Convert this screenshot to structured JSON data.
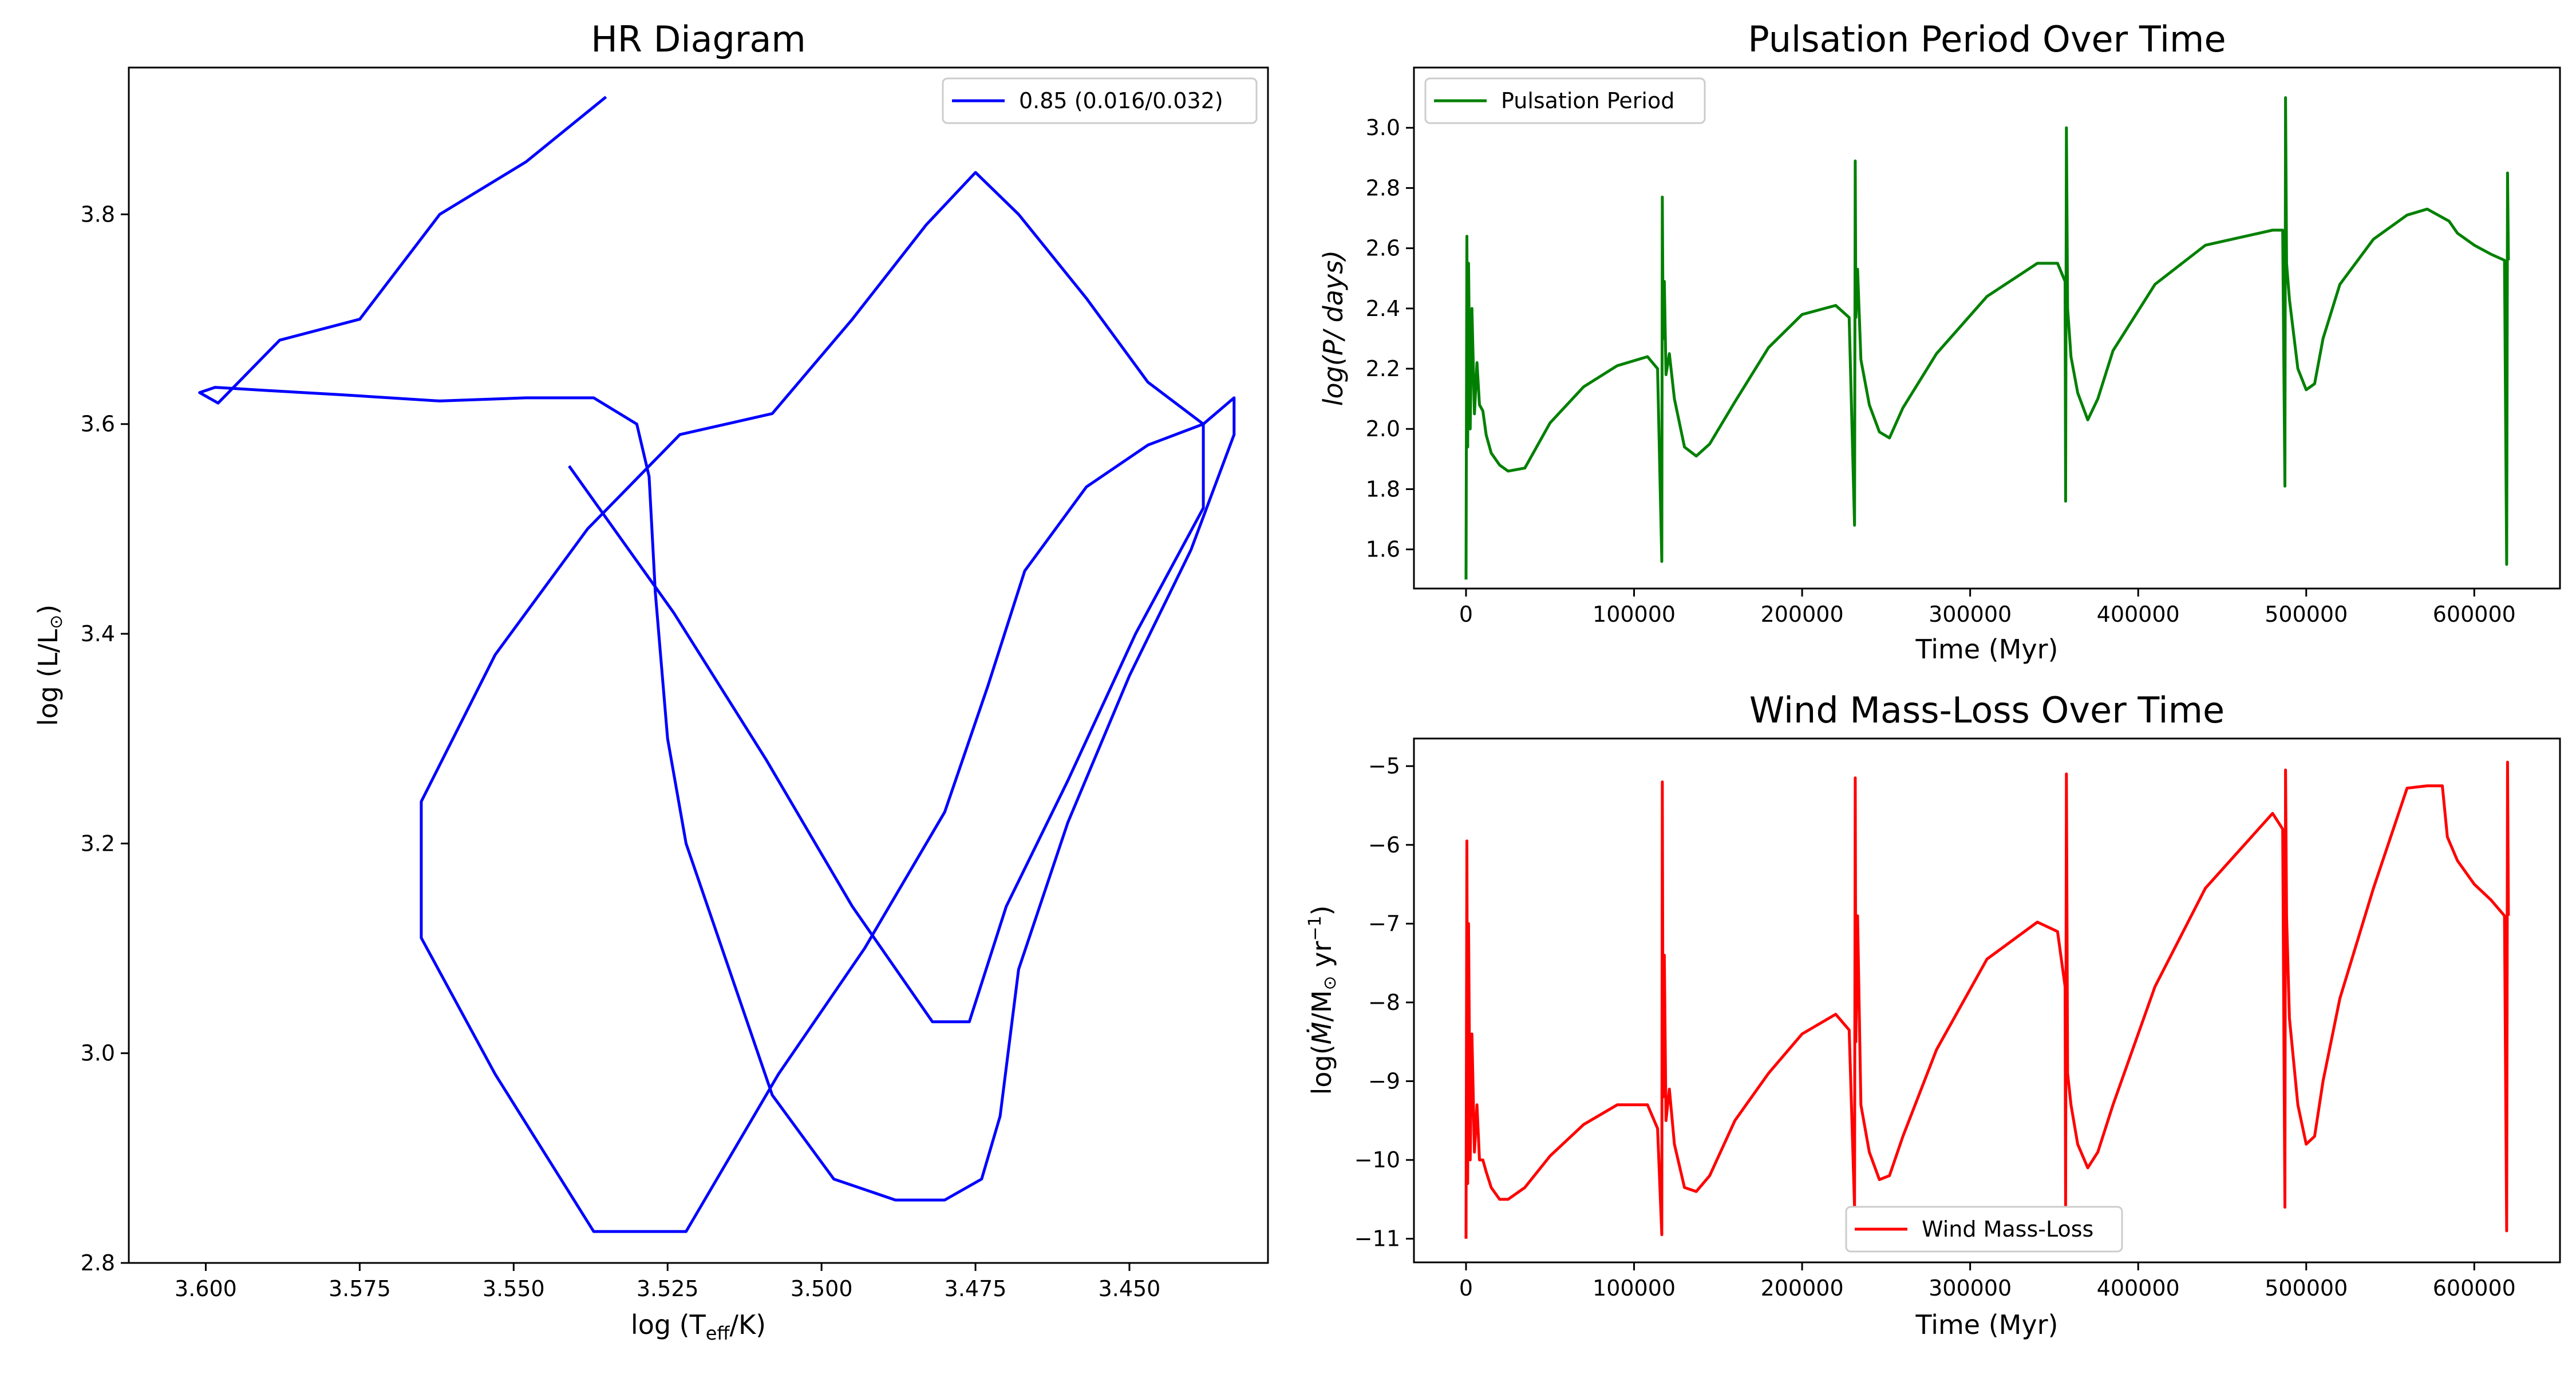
{
  "chart_data": [
    {
      "type": "line",
      "title": "HR Diagram",
      "xlabel_main": "log (T",
      "xlabel_sub": "eff",
      "xlabel_tail": "/K)",
      "ylabel_main": "log (L/L",
      "ylabel_sym": "⊙",
      "ylabel_tail": ")",
      "xlim": [
        3.6125,
        3.4275
      ],
      "ylim": [
        2.8,
        3.94
      ],
      "x_inverted": true,
      "xticks": [
        3.6,
        3.575,
        3.55,
        3.525,
        3.5,
        3.475,
        3.45
      ],
      "xtick_labels": [
        "3.600",
        "3.575",
        "3.550",
        "3.525",
        "3.500",
        "3.475",
        "3.450"
      ],
      "yticks": [
        2.8,
        3.0,
        3.2,
        3.4,
        3.6,
        3.8
      ],
      "ytick_labels": [
        "2.8",
        "3.0",
        "3.2",
        "3.4",
        "3.6",
        "3.8"
      ],
      "legend_position": "upper right",
      "series": [
        {
          "name": "0.85 (0.016/0.032)",
          "color": "#0000ff",
          "x": [
            3.535,
            3.548,
            3.562,
            3.575,
            3.588,
            3.598,
            3.601,
            3.5985,
            3.59,
            3.578,
            3.562,
            3.548,
            3.537,
            3.53,
            3.528,
            3.527,
            3.525,
            3.522,
            3.515,
            3.508,
            3.498,
            3.488,
            3.48,
            3.474,
            3.471,
            3.468,
            3.46,
            3.45,
            3.44,
            3.433,
            3.433,
            3.438,
            3.447,
            3.457,
            3.467,
            3.473,
            3.48,
            3.493,
            3.507,
            3.522,
            3.537,
            3.553,
            3.565,
            3.565,
            3.553,
            3.538,
            3.523,
            3.508,
            3.495,
            3.483,
            3.475,
            3.468,
            3.457,
            3.447,
            3.438,
            3.438,
            3.449,
            3.46,
            3.47,
            3.476,
            3.482,
            3.495,
            3.509,
            3.524,
            3.541
          ],
          "y": [
            3.912,
            3.85,
            3.8,
            3.7,
            3.68,
            3.62,
            3.63,
            3.635,
            3.632,
            3.628,
            3.622,
            3.625,
            3.625,
            3.6,
            3.55,
            3.44,
            3.3,
            3.2,
            3.08,
            2.96,
            2.88,
            2.86,
            2.86,
            2.88,
            2.94,
            3.08,
            3.22,
            3.36,
            3.48,
            3.59,
            3.625,
            3.6,
            3.58,
            3.54,
            3.46,
            3.35,
            3.23,
            3.1,
            2.98,
            2.83,
            2.83,
            2.98,
            3.11,
            3.24,
            3.38,
            3.5,
            3.59,
            3.61,
            3.7,
            3.79,
            3.84,
            3.8,
            3.72,
            3.64,
            3.6,
            3.52,
            3.4,
            3.26,
            3.14,
            3.03,
            3.03,
            3.14,
            3.28,
            3.42,
            3.56
          ]
        }
      ]
    },
    {
      "type": "line",
      "title": "Pulsation Period Over Time",
      "xlabel": "Time (Myr)",
      "ylabel_main": "log(P/ days)",
      "xlim": [
        -31000,
        651000
      ],
      "ylim": [
        1.47,
        3.2
      ],
      "xticks": [
        0,
        100000,
        200000,
        300000,
        400000,
        500000,
        600000
      ],
      "xtick_labels": [
        "0",
        "100000",
        "200000",
        "300000",
        "400000",
        "500000",
        "600000"
      ],
      "yticks": [
        1.6,
        1.8,
        2.0,
        2.2,
        2.4,
        2.6,
        2.8,
        3.0
      ],
      "ytick_labels": [
        "1.6",
        "1.8",
        "2.0",
        "2.2",
        "2.4",
        "2.6",
        "2.8",
        "3.0"
      ],
      "legend_position": "upper left",
      "series": [
        {
          "name": "Pulsation Period",
          "color": "#008000",
          "x": [
            0,
            500,
            1000,
            1500,
            2500,
            3500,
            5000,
            6500,
            8000,
            10000,
            12000,
            15000,
            20000,
            25000,
            35000,
            50000,
            70000,
            90000,
            108000,
            114000,
            116500,
            116800,
            117300,
            118000,
            119000,
            121000,
            124000,
            130000,
            137000,
            145000,
            160000,
            180000,
            200000,
            220000,
            228000,
            231200,
            231600,
            232000,
            233000,
            235000,
            240000,
            246000,
            252000,
            260000,
            280000,
            310000,
            340000,
            352000,
            356500,
            356800,
            357300,
            358000,
            360000,
            364000,
            370000,
            376000,
            385000,
            410000,
            440000,
            480000,
            486000,
            487300,
            487700,
            488300,
            490000,
            495000,
            500000,
            505000,
            510000,
            520000,
            540000,
            560000,
            572000,
            585000,
            590000,
            600000,
            610000,
            618000,
            619300,
            619800,
            620300
          ],
          "y": [
            1.5,
            2.64,
            1.94,
            2.55,
            2.0,
            2.4,
            2.05,
            2.22,
            2.08,
            2.06,
            1.98,
            1.92,
            1.88,
            1.86,
            1.87,
            2.02,
            2.14,
            2.21,
            2.24,
            2.2,
            1.56,
            2.77,
            2.3,
            2.49,
            2.18,
            2.25,
            2.1,
            1.94,
            1.91,
            1.95,
            2.09,
            2.27,
            2.38,
            2.41,
            2.37,
            1.68,
            2.89,
            2.37,
            2.53,
            2.23,
            2.08,
            1.99,
            1.97,
            2.07,
            2.25,
            2.44,
            2.55,
            2.55,
            2.49,
            1.76,
            3.0,
            2.4,
            2.24,
            2.12,
            2.03,
            2.1,
            2.26,
            2.48,
            2.61,
            2.66,
            2.66,
            1.81,
            3.1,
            2.55,
            2.43,
            2.2,
            2.13,
            2.15,
            2.3,
            2.48,
            2.63,
            2.71,
            2.73,
            2.69,
            2.65,
            2.61,
            2.58,
            2.56,
            1.55,
            2.85,
            2.56
          ]
        }
      ]
    },
    {
      "type": "line",
      "title": "Wind Mass-Loss Over Time",
      "xlabel": "Time (Myr)",
      "ylabel_pre": "log(",
      "ylabel_mdot": "Ṁ",
      "ylabel_mid": "/M",
      "ylabel_sym": "⊙",
      "ylabel_unit": " yr",
      "ylabel_exp": "−1",
      "ylabel_tail": ")",
      "xlim": [
        -31000,
        651000
      ],
      "ylim": [
        -11.3,
        -4.65
      ],
      "xticks": [
        0,
        100000,
        200000,
        300000,
        400000,
        500000,
        600000
      ],
      "xtick_labels": [
        "0",
        "100000",
        "200000",
        "300000",
        "400000",
        "500000",
        "600000"
      ],
      "yticks": [
        -11,
        -10,
        -9,
        -8,
        -7,
        -6,
        -5
      ],
      "ytick_labels": [
        "−11",
        "−10",
        "−9",
        "−8",
        "−7",
        "−6",
        "−5"
      ],
      "legend_position": "lower center",
      "series": [
        {
          "name": "Wind Mass-Loss",
          "color": "#ff0000",
          "x": [
            0,
            500,
            1000,
            1500,
            2500,
            3500,
            5000,
            6500,
            8000,
            10000,
            12000,
            15000,
            20000,
            25000,
            35000,
            50000,
            70000,
            90000,
            108000,
            114000,
            116500,
            116800,
            117300,
            118000,
            119000,
            121000,
            124000,
            130000,
            137000,
            145000,
            160000,
            180000,
            200000,
            220000,
            228000,
            231200,
            231600,
            232000,
            233000,
            235000,
            240000,
            246000,
            252000,
            260000,
            280000,
            310000,
            340000,
            352000,
            356500,
            356800,
            357300,
            358000,
            360000,
            364000,
            370000,
            376000,
            385000,
            410000,
            440000,
            480000,
            486000,
            487300,
            487700,
            488300,
            490000,
            495000,
            500000,
            505000,
            510000,
            520000,
            540000,
            560000,
            572000,
            581000,
            584000,
            590000,
            600000,
            610000,
            618000,
            619300,
            619800,
            620300
          ],
          "y": [
            -11.0,
            -5.95,
            -10.3,
            -7.0,
            -10.0,
            -8.4,
            -9.9,
            -9.3,
            -10.0,
            -10.0,
            -10.15,
            -10.35,
            -10.5,
            -10.5,
            -10.35,
            -9.95,
            -9.55,
            -9.3,
            -9.3,
            -9.6,
            -10.95,
            -5.2,
            -9.2,
            -7.4,
            -9.5,
            -9.1,
            -9.8,
            -10.35,
            -10.4,
            -10.2,
            -9.5,
            -8.9,
            -8.4,
            -8.15,
            -8.35,
            -10.6,
            -5.15,
            -8.5,
            -6.9,
            -9.3,
            -9.9,
            -10.25,
            -10.2,
            -9.7,
            -8.6,
            -7.45,
            -6.98,
            -7.1,
            -7.8,
            -10.6,
            -5.1,
            -8.9,
            -9.3,
            -9.8,
            -10.1,
            -9.9,
            -9.3,
            -7.8,
            -6.55,
            -5.6,
            -5.8,
            -10.6,
            -5.05,
            -6.9,
            -8.2,
            -9.3,
            -9.8,
            -9.7,
            -9.0,
            -7.95,
            -6.55,
            -5.28,
            -5.25,
            -5.25,
            -5.9,
            -6.2,
            -6.5,
            -6.7,
            -6.9,
            -10.9,
            -4.95,
            -6.9
          ]
        }
      ]
    }
  ]
}
